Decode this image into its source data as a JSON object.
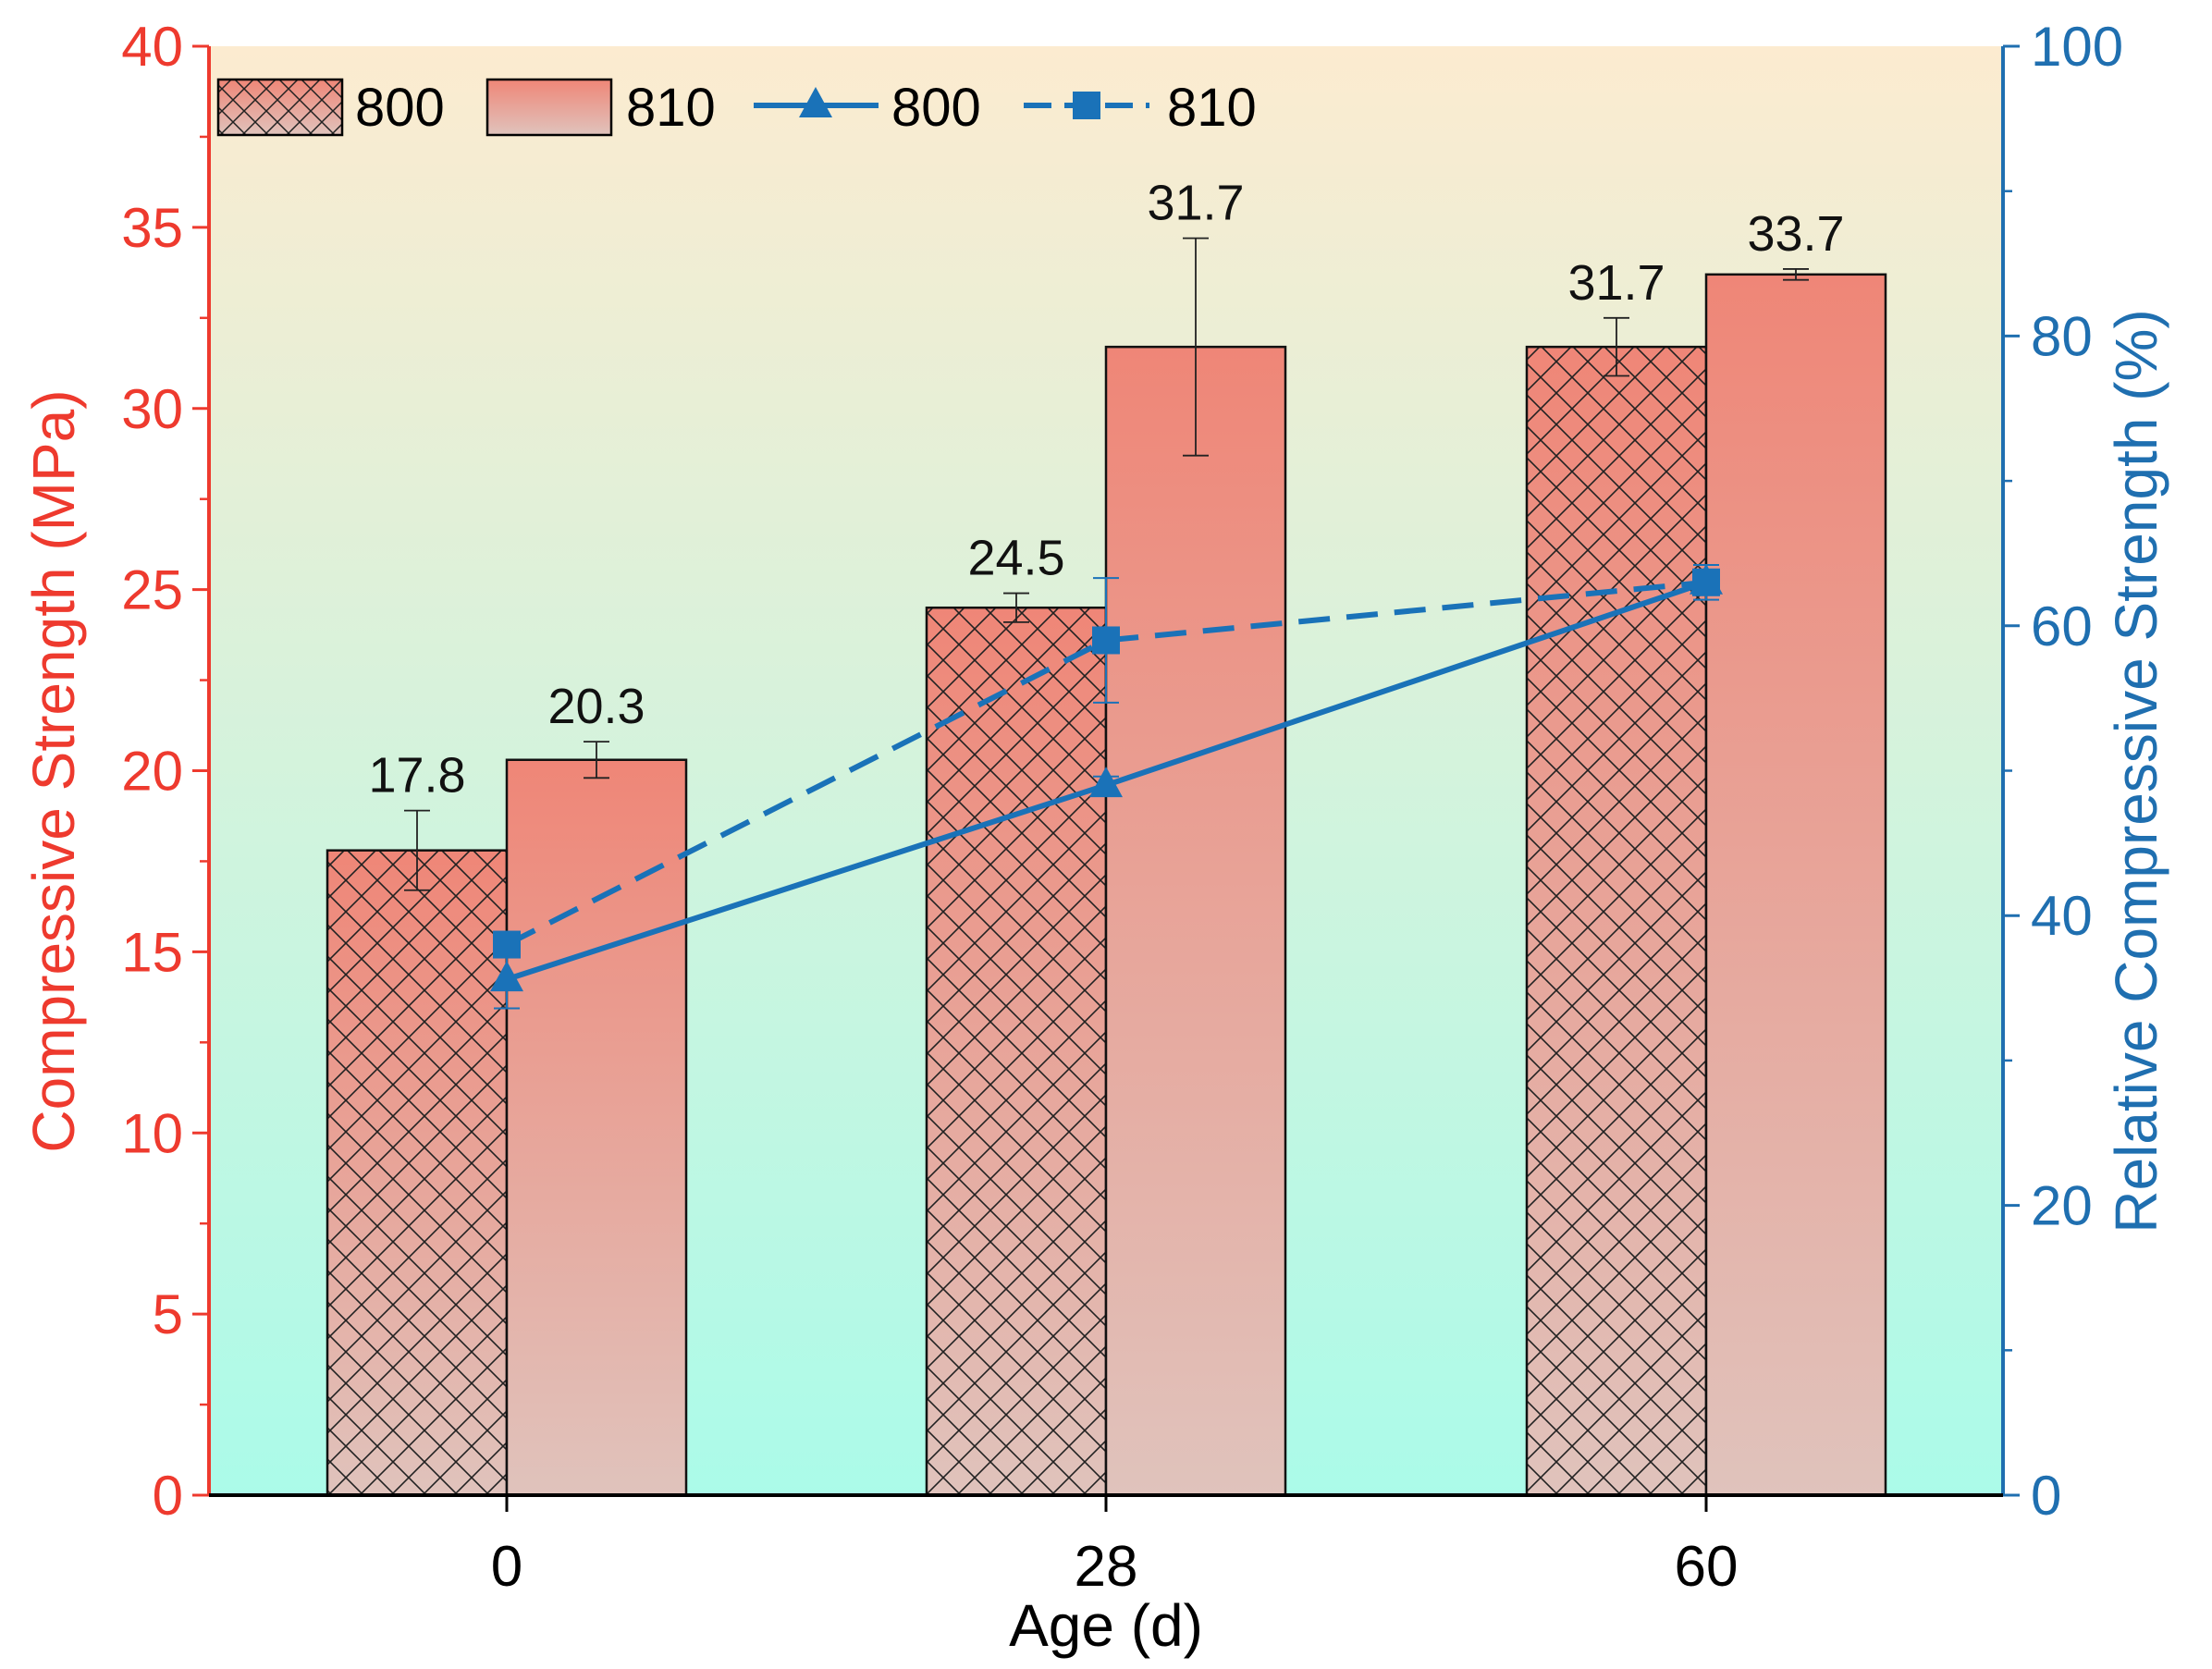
{
  "chart_data": {
    "type": "bar",
    "categories": [
      "0",
      "28",
      "60"
    ],
    "xlabel": "Age (d)",
    "ylabel": "Compressive Strength (MPa)",
    "y2label": "Relative Compressive Strength (%)",
    "ylim": [
      0,
      40
    ],
    "y2lim": [
      0,
      100
    ],
    "yticks": [
      0,
      5,
      10,
      15,
      20,
      25,
      30,
      35,
      40
    ],
    "y2ticks": [
      0,
      20,
      40,
      60,
      80,
      100
    ],
    "grid": false,
    "legend_position": "top-left",
    "bar_series": [
      {
        "name": "800",
        "pattern": "crosshatch",
        "values": [
          17.8,
          24.5,
          31.7
        ],
        "labels": [
          "17.8",
          "24.5",
          "31.7"
        ],
        "errors": [
          1.1,
          0.4,
          0.8
        ]
      },
      {
        "name": "810",
        "pattern": "solid-gradient",
        "values": [
          20.3,
          31.7,
          33.7
        ],
        "labels": [
          "20.3",
          "31.7",
          "33.7"
        ],
        "errors": [
          0.5,
          3.0,
          0.15
        ]
      }
    ],
    "line_series": [
      {
        "name": "800",
        "marker": "triangle",
        "line_style": "solid",
        "axis": "right",
        "values": [
          35.6,
          49.0,
          63.0
        ],
        "errors": [
          2.0,
          0.6,
          1.2
        ]
      },
      {
        "name": "810",
        "marker": "square",
        "line_style": "dashed",
        "axis": "right",
        "values": [
          38.0,
          59.0,
          63.0
        ],
        "errors": [
          0.8,
          4.3,
          0.5
        ]
      }
    ]
  },
  "colors": {
    "left_axis": "#ee3a2e",
    "right_axis": "#1f6fb0",
    "line": "#1a72b8",
    "bar_top": "#ef8677",
    "bar_bottom": "#e0c3bc",
    "bg_top": "#fcebd0",
    "bg_bottom": "#abfbe9",
    "bar_edge": "#111111"
  }
}
